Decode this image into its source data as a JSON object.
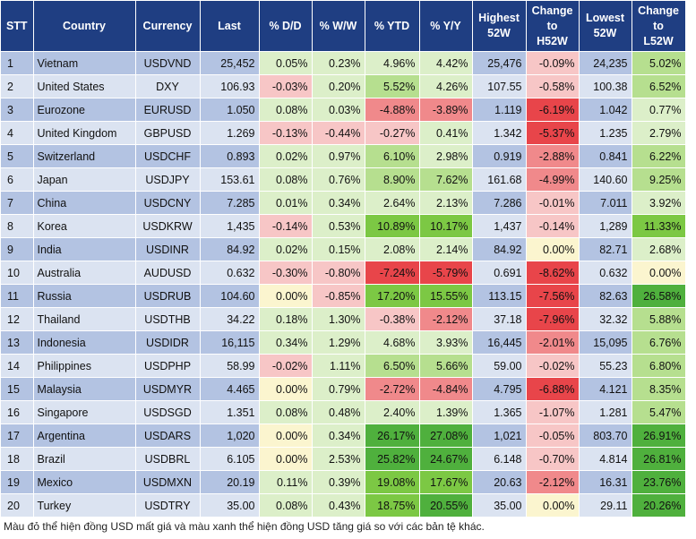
{
  "headers": [
    "STT",
    "Country",
    "Currency",
    "Last",
    "% D/D",
    "% W/W",
    "% YTD",
    "% Y/Y",
    "Highest\n52W",
    "Change\nto\nH52W",
    "Lowest\n52W",
    "Change\nto\nL52W"
  ],
  "colors": {
    "header_bg": "#1f3e82",
    "row_odd": "#b3c3e2",
    "row_even": "#dbe3f1",
    "red_strong": "#e8454a",
    "red_medium": "#f0898b",
    "red_light": "#f7c6c6",
    "neutral": "#fbf5cf",
    "green_light": "#dcefc9",
    "green_medium": "#b6df8f",
    "green_strong": "#7cc844",
    "green_deep": "#4fb03d"
  },
  "rows": [
    {
      "stt": "1",
      "country": "Vietnam",
      "currency": "USDVND",
      "last": "25,452",
      "dd": "0.05%",
      "ww": "0.23%",
      "ytd": "4.96%",
      "yy": "4.42%",
      "high52": "25,476",
      "chg_h52": "-0.09%",
      "low52": "24,235",
      "chg_l52": "5.02%"
    },
    {
      "stt": "2",
      "country": "United States",
      "currency": "DXY",
      "last": "106.93",
      "dd": "-0.03%",
      "ww": "0.20%",
      "ytd": "5.52%",
      "yy": "4.26%",
      "high52": "107.55",
      "chg_h52": "-0.58%",
      "low52": "100.38",
      "chg_l52": "6.52%"
    },
    {
      "stt": "3",
      "country": "Eurozone",
      "currency": "EURUSD",
      "last": "1.050",
      "dd": "0.08%",
      "ww": "0.03%",
      "ytd": "-4.88%",
      "yy": "-3.89%",
      "high52": "1.119",
      "chg_h52": "-6.19%",
      "low52": "1.042",
      "chg_l52": "0.77%"
    },
    {
      "stt": "4",
      "country": "United Kingdom",
      "currency": "GBPUSD",
      "last": "1.269",
      "dd": "-0.13%",
      "ww": "-0.44%",
      "ytd": "-0.27%",
      "yy": "0.41%",
      "high52": "1.342",
      "chg_h52": "-5.37%",
      "low52": "1.235",
      "chg_l52": "2.79%"
    },
    {
      "stt": "5",
      "country": "Switzerland",
      "currency": "USDCHF",
      "last": "0.893",
      "dd": "0.02%",
      "ww": "0.97%",
      "ytd": "6.10%",
      "yy": "2.98%",
      "high52": "0.919",
      "chg_h52": "-2.88%",
      "low52": "0.841",
      "chg_l52": "6.22%"
    },
    {
      "stt": "6",
      "country": "Japan",
      "currency": "USDJPY",
      "last": "153.61",
      "dd": "0.08%",
      "ww": "0.76%",
      "ytd": "8.90%",
      "yy": "7.62%",
      "high52": "161.68",
      "chg_h52": "-4.99%",
      "low52": "140.60",
      "chg_l52": "9.25%"
    },
    {
      "stt": "7",
      "country": "China",
      "currency": "USDCNY",
      "last": "7.285",
      "dd": "0.01%",
      "ww": "0.34%",
      "ytd": "2.64%",
      "yy": "2.13%",
      "high52": "7.286",
      "chg_h52": "-0.01%",
      "low52": "7.011",
      "chg_l52": "3.92%"
    },
    {
      "stt": "8",
      "country": "Korea",
      "currency": "USDKRW",
      "last": "1,435",
      "dd": "-0.14%",
      "ww": "0.53%",
      "ytd": "10.89%",
      "yy": "10.17%",
      "high52": "1,437",
      "chg_h52": "-0.14%",
      "low52": "1,289",
      "chg_l52": "11.33%"
    },
    {
      "stt": "9",
      "country": "India",
      "currency": "USDINR",
      "last": "84.92",
      "dd": "0.02%",
      "ww": "0.15%",
      "ytd": "2.08%",
      "yy": "2.14%",
      "high52": "84.92",
      "chg_h52": "0.00%",
      "low52": "82.71",
      "chg_l52": "2.68%"
    },
    {
      "stt": "10",
      "country": "Australia",
      "currency": "AUDUSD",
      "last": "0.632",
      "dd": "-0.30%",
      "ww": "-0.80%",
      "ytd": "-7.24%",
      "yy": "-5.79%",
      "high52": "0.691",
      "chg_h52": "-8.62%",
      "low52": "0.632",
      "chg_l52": "0.00%"
    },
    {
      "stt": "11",
      "country": "Russia",
      "currency": "USDRUB",
      "last": "104.60",
      "dd": "0.00%",
      "ww": "-0.85%",
      "ytd": "17.20%",
      "yy": "15.55%",
      "high52": "113.15",
      "chg_h52": "-7.56%",
      "low52": "82.63",
      "chg_l52": "26.58%"
    },
    {
      "stt": "12",
      "country": "Thailand",
      "currency": "USDTHB",
      "last": "34.22",
      "dd": "0.18%",
      "ww": "1.30%",
      "ytd": "-0.38%",
      "yy": "-2.12%",
      "high52": "37.18",
      "chg_h52": "-7.96%",
      "low52": "32.32",
      "chg_l52": "5.88%"
    },
    {
      "stt": "13",
      "country": "Indonesia",
      "currency": "USDIDR",
      "last": "16,115",
      "dd": "0.34%",
      "ww": "1.29%",
      "ytd": "4.68%",
      "yy": "3.93%",
      "high52": "16,445",
      "chg_h52": "-2.01%",
      "low52": "15,095",
      "chg_l52": "6.76%"
    },
    {
      "stt": "14",
      "country": "Philippines",
      "currency": "USDPHP",
      "last": "58.99",
      "dd": "-0.02%",
      "ww": "1.11%",
      "ytd": "6.50%",
      "yy": "5.66%",
      "high52": "59.00",
      "chg_h52": "-0.02%",
      "low52": "55.23",
      "chg_l52": "6.80%"
    },
    {
      "stt": "15",
      "country": "Malaysia",
      "currency": "USDMYR",
      "last": "4.465",
      "dd": "0.00%",
      "ww": "0.79%",
      "ytd": "-2.72%",
      "yy": "-4.84%",
      "high52": "4.795",
      "chg_h52": "-6.88%",
      "low52": "4.121",
      "chg_l52": "8.35%"
    },
    {
      "stt": "16",
      "country": "Singapore",
      "currency": "USDSGD",
      "last": "1.351",
      "dd": "0.08%",
      "ww": "0.48%",
      "ytd": "2.40%",
      "yy": "1.39%",
      "high52": "1.365",
      "chg_h52": "-1.07%",
      "low52": "1.281",
      "chg_l52": "5.47%"
    },
    {
      "stt": "17",
      "country": "Argentina",
      "currency": "USDARS",
      "last": "1,020",
      "dd": "0.00%",
      "ww": "0.34%",
      "ytd": "26.17%",
      "yy": "27.08%",
      "high52": "1,021",
      "chg_h52": "-0.05%",
      "low52": "803.70",
      "chg_l52": "26.91%"
    },
    {
      "stt": "18",
      "country": "Brazil",
      "currency": "USDBRL",
      "last": "6.105",
      "dd": "0.00%",
      "ww": "2.53%",
      "ytd": "25.82%",
      "yy": "24.67%",
      "high52": "6.148",
      "chg_h52": "-0.70%",
      "low52": "4.814",
      "chg_l52": "26.81%"
    },
    {
      "stt": "19",
      "country": "Mexico",
      "currency": "USDMXN",
      "last": "20.19",
      "dd": "0.11%",
      "ww": "0.39%",
      "ytd": "19.08%",
      "yy": "17.67%",
      "high52": "20.63",
      "chg_h52": "-2.12%",
      "low52": "16.31",
      "chg_l52": "23.76%"
    },
    {
      "stt": "20",
      "country": "Turkey",
      "currency": "USDTRY",
      "last": "35.00",
      "dd": "0.08%",
      "ww": "0.43%",
      "ytd": "18.75%",
      "yy": "20.55%",
      "high52": "35.00",
      "chg_h52": "0.00%",
      "low52": "29.11",
      "chg_l52": "20.26%"
    }
  ],
  "footnote": "Màu đỏ thể hiện đồng USD mất giá và màu xanh thể hiện đồng USD tăng giá so với các bản tệ khác."
}
